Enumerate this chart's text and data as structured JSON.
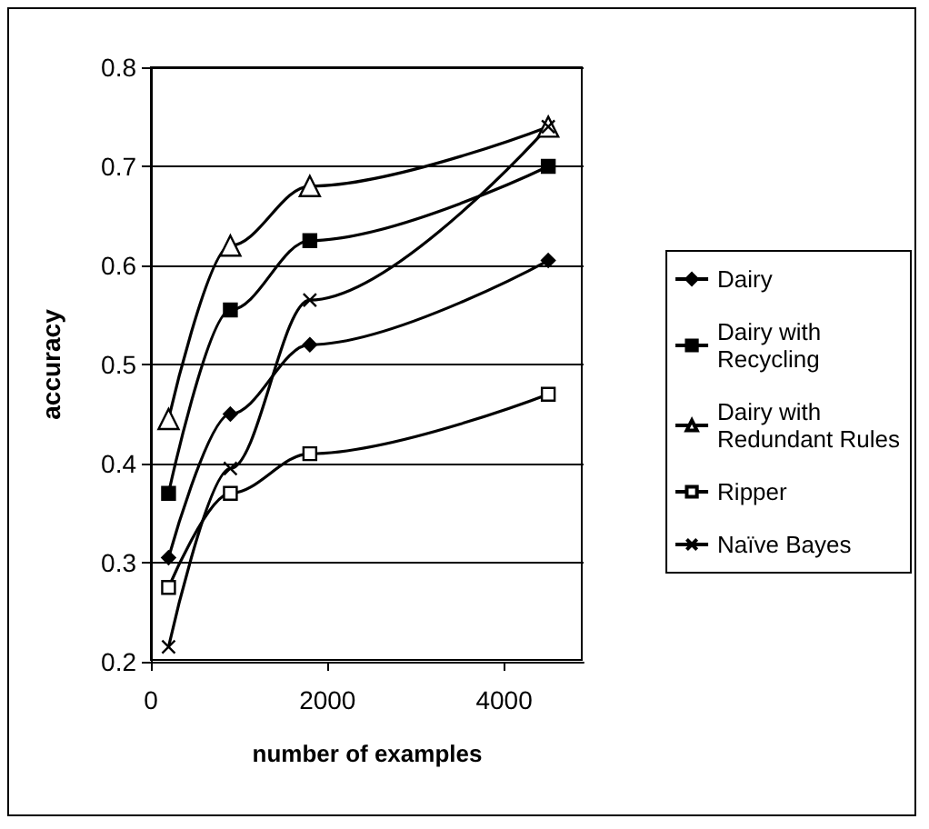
{
  "chart_data": {
    "type": "line",
    "xlabel": "number of examples",
    "ylabel": "accuracy",
    "x": [
      200,
      900,
      1800,
      4500
    ],
    "series": [
      {
        "name": "Dairy",
        "color": "#000000",
        "marker": "diamond",
        "values": [
          0.305,
          0.45,
          0.52,
          0.605
        ]
      },
      {
        "name": "Dairy with\nRecycling",
        "color": "#000000",
        "marker": "square",
        "values": [
          0.37,
          0.555,
          0.625,
          0.7
        ]
      },
      {
        "name": "Dairy with\nRedundant Rules",
        "color": "#000000",
        "marker": "triangle",
        "values": [
          0.445,
          0.62,
          0.68,
          0.74
        ]
      },
      {
        "name": "Ripper",
        "color": "#000000",
        "marker": "square",
        "values": [
          0.275,
          0.37,
          0.41,
          0.47
        ]
      },
      {
        "name": "Naïve Bayes",
        "color": "#000000",
        "marker": "cross",
        "values": [
          0.215,
          0.395,
          0.565,
          0.74
        ]
      }
    ],
    "xlim": [
      0,
      4900
    ],
    "xticks": [
      0,
      2000,
      4000
    ],
    "ylim": [
      0.2,
      0.8
    ],
    "yticks": [
      0.2,
      0.3,
      0.4,
      0.5,
      0.6,
      0.7,
      0.8
    ],
    "grid": "y",
    "legend": "right"
  }
}
